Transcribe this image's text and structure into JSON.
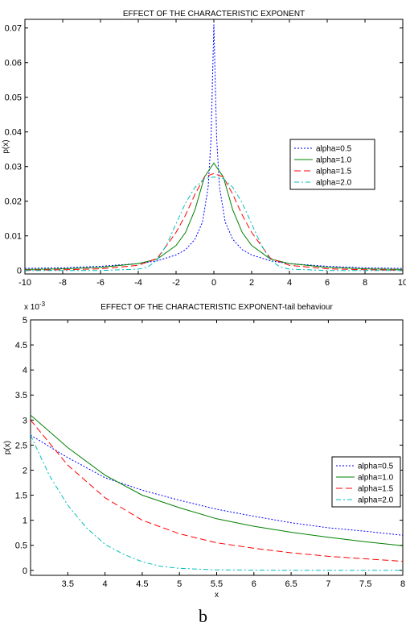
{
  "panel_label": "b",
  "chart_data": [
    {
      "type": "line",
      "title": "EFFECT OF THE CHARACTERISTIC EXPONENT",
      "xlabel": "",
      "ylabel": "p(x)",
      "xlim": [
        -10,
        10
      ],
      "ylim": [
        -0.001,
        0.0725
      ],
      "xticks": [
        -10,
        -8,
        -6,
        -4,
        -2,
        0,
        2,
        4,
        6,
        8,
        10
      ],
      "xtick_labels": [
        "-10",
        "-8",
        "-6",
        "-4",
        "-2",
        "0",
        "2",
        "4",
        "6",
        "8",
        "10"
      ],
      "yticks": [
        0,
        0.01,
        0.02,
        0.03,
        0.04,
        0.05,
        0.06,
        0.07
      ],
      "ytick_labels": [
        "0",
        "0.01",
        "0.02",
        "0.03",
        "0.04",
        "0.05",
        "0.06",
        "0.07"
      ],
      "grid": false,
      "legend_position": "right",
      "series": [
        {
          "name": "alpha=0.5",
          "color": "#0000ff",
          "dash": "2,2",
          "x": [
            -10,
            -8,
            -6,
            -4,
            -3,
            -2,
            -1.5,
            -1,
            -0.6,
            -0.3,
            -0.15,
            0,
            0.15,
            0.3,
            0.6,
            1,
            1.5,
            2,
            3,
            4,
            6,
            8,
            10
          ],
          "y": [
            0.0006,
            0.0008,
            0.0012,
            0.002,
            0.0028,
            0.0045,
            0.006,
            0.009,
            0.014,
            0.024,
            0.038,
            0.071,
            0.038,
            0.024,
            0.014,
            0.009,
            0.006,
            0.0045,
            0.0028,
            0.002,
            0.0012,
            0.0008,
            0.0006
          ]
        },
        {
          "name": "alpha=1.0",
          "color": "#008000",
          "dash": "",
          "x": [
            -10,
            -8,
            -6,
            -4,
            -3,
            -2,
            -1.5,
            -1,
            -0.5,
            0,
            0.5,
            1,
            1.5,
            2,
            3,
            4,
            6,
            8,
            10
          ],
          "y": [
            0.0003,
            0.0005,
            0.0009,
            0.002,
            0.0033,
            0.0072,
            0.011,
            0.0175,
            0.027,
            0.031,
            0.027,
            0.0175,
            0.011,
            0.0072,
            0.0033,
            0.002,
            0.0009,
            0.0005,
            0.0003
          ]
        },
        {
          "name": "alpha=1.5",
          "color": "#ff0000",
          "dash": "8,4",
          "x": [
            -10,
            -8,
            -6,
            -4,
            -3,
            -2,
            -1.5,
            -1,
            -0.5,
            0,
            0.5,
            1,
            1.5,
            2,
            3,
            4,
            6,
            8,
            10
          ],
          "y": [
            0.0001,
            0.0002,
            0.0005,
            0.0015,
            0.0035,
            0.011,
            0.016,
            0.022,
            0.027,
            0.028,
            0.027,
            0.022,
            0.016,
            0.011,
            0.0035,
            0.0015,
            0.0005,
            0.0002,
            0.0001
          ]
        },
        {
          "name": "alpha=2.0",
          "color": "#00bfbf",
          "dash": "6,3,2,3",
          "x": [
            -10,
            -8,
            -6,
            -4,
            -3.5,
            -3,
            -2.5,
            -2,
            -1.5,
            -1,
            -0.5,
            0,
            0.5,
            1,
            1.5,
            2,
            2.5,
            3,
            3.5,
            4,
            6,
            8,
            10
          ],
          "y": [
            0,
            0,
            0,
            0.0004,
            0.001,
            0.003,
            0.0075,
            0.0135,
            0.0195,
            0.024,
            0.0265,
            0.027,
            0.0265,
            0.024,
            0.0195,
            0.0135,
            0.0075,
            0.003,
            0.001,
            0.0004,
            0,
            0,
            0
          ]
        }
      ]
    },
    {
      "type": "line",
      "title": "EFFECT OF THE CHARACTERISTIC EXPONENT-tail behaviour",
      "xlabel": "x",
      "ylabel": "p(x)",
      "y_exponent_label": "x 10",
      "y_exponent_power": "-3",
      "xlim": [
        3,
        8
      ],
      "ylim": [
        -0.1,
        5
      ],
      "xticks": [
        3.5,
        4,
        4.5,
        5,
        5.5,
        6,
        6.5,
        7,
        7.5,
        8
      ],
      "xtick_labels": [
        "3.5",
        "4",
        "4.5",
        "5",
        "5.5",
        "6",
        "6.5",
        "7",
        "7.5",
        "8"
      ],
      "yticks": [
        0,
        0.5,
        1,
        1.5,
        2,
        2.5,
        3,
        3.5,
        4,
        4.5,
        5
      ],
      "ytick_labels": [
        "0",
        "0.5",
        "1",
        "1.5",
        "2",
        "2.5",
        "3",
        "3.5",
        "4",
        "4.5",
        "5"
      ],
      "grid": false,
      "legend_position": "right",
      "series": [
        {
          "name": "alpha=0.5",
          "color": "#0000ff",
          "dash": "2,2",
          "x": [
            3,
            3.5,
            4,
            4.5,
            5,
            5.5,
            6,
            6.5,
            7,
            7.5,
            8
          ],
          "y": [
            2.7,
            2.25,
            1.85,
            1.6,
            1.4,
            1.22,
            1.08,
            0.95,
            0.85,
            0.78,
            0.7
          ]
        },
        {
          "name": "alpha=1.0",
          "color": "#008000",
          "dash": "",
          "x": [
            3,
            3.5,
            4,
            4.5,
            5,
            5.5,
            6,
            6.5,
            7,
            7.5,
            8
          ],
          "y": [
            3.1,
            2.45,
            1.9,
            1.5,
            1.25,
            1.03,
            0.88,
            0.76,
            0.66,
            0.57,
            0.49
          ]
        },
        {
          "name": "alpha=1.5",
          "color": "#ff0000",
          "dash": "8,4",
          "x": [
            3,
            3.5,
            4,
            4.5,
            5,
            5.5,
            6,
            6.5,
            7,
            7.5,
            8
          ],
          "y": [
            3.0,
            2.1,
            1.45,
            1.0,
            0.73,
            0.55,
            0.44,
            0.35,
            0.28,
            0.23,
            0.18
          ]
        },
        {
          "name": "alpha=2.0",
          "color": "#00bfbf",
          "dash": "6,3,2,3",
          "x": [
            3,
            3.25,
            3.5,
            3.75,
            4,
            4.25,
            4.5,
            4.75,
            5,
            5.5,
            6,
            6.5,
            7,
            7.5,
            8
          ],
          "y": [
            2.7,
            1.9,
            1.3,
            0.85,
            0.52,
            0.32,
            0.17,
            0.08,
            0.04,
            0.01,
            0.005,
            0,
            0,
            0,
            0
          ]
        }
      ]
    }
  ]
}
